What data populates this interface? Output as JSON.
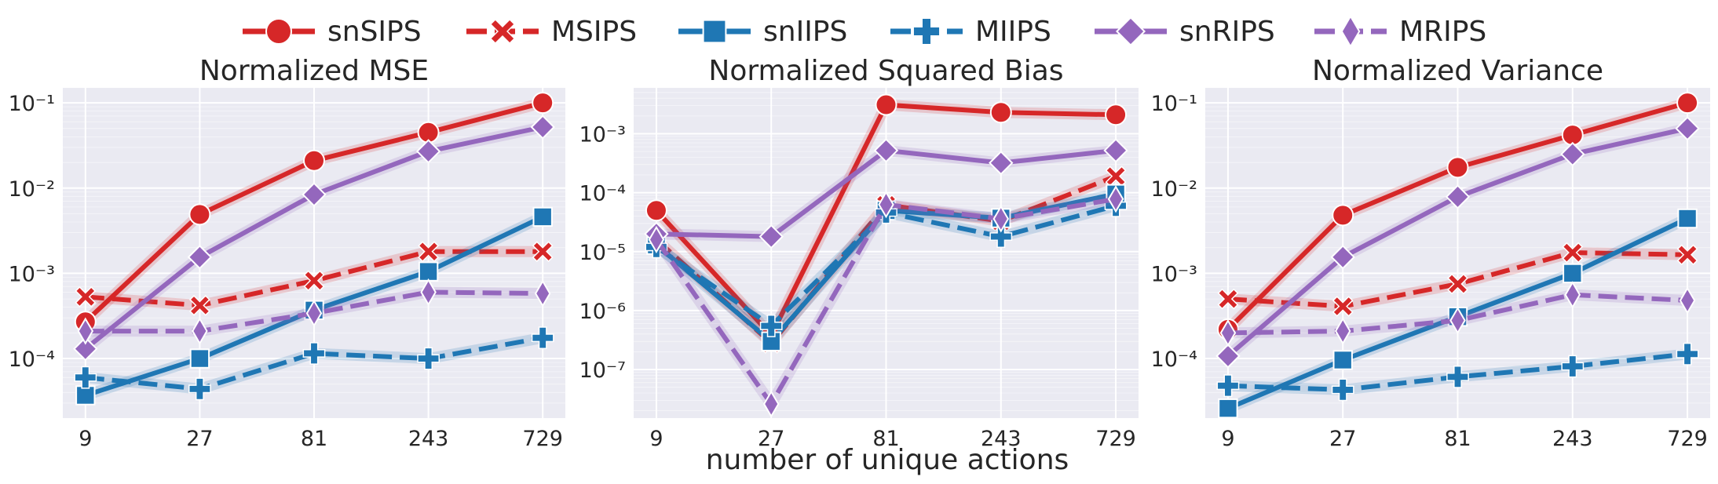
{
  "legend": {
    "entries": [
      {
        "name": "snSIPS",
        "color": "#d62728",
        "dash": "solid",
        "marker": "circle"
      },
      {
        "name": "MSIPS",
        "color": "#d62728",
        "dash": "dashed",
        "marker": "x"
      },
      {
        "name": "snIIPS",
        "color": "#1f77b4",
        "dash": "solid",
        "marker": "square"
      },
      {
        "name": "MIIPS",
        "color": "#1f77b4",
        "dash": "dashed",
        "marker": "plus"
      },
      {
        "name": "snRIPS",
        "color": "#9467bd",
        "dash": "solid",
        "marker": "diamond"
      },
      {
        "name": "MRIPS",
        "color": "#9467bd",
        "dash": "dashed",
        "marker": "thin-diamond"
      }
    ]
  },
  "x_label": "number of unique actions",
  "chart_data": [
    {
      "type": "line",
      "title": "Normalized MSE",
      "x_scale": "categorical",
      "y_scale": "log",
      "x": [
        "9",
        "27",
        "81",
        "243",
        "729"
      ],
      "yticks": [
        0.0001,
        0.001,
        0.01,
        0.1
      ],
      "ylim": [
        2e-05,
        0.15
      ],
      "grid": true,
      "series": [
        {
          "name": "snSIPS",
          "values": [
            0.00027,
            0.0049,
            0.021,
            0.045,
            0.1
          ]
        },
        {
          "name": "MSIPS",
          "values": [
            0.00053,
            0.00042,
            0.00082,
            0.0018,
            0.0018
          ]
        },
        {
          "name": "snIIPS",
          "values": [
            3.7e-05,
            0.0001,
            0.00037,
            0.00105,
            0.0046
          ]
        },
        {
          "name": "MIIPS",
          "values": [
            6e-05,
            4.4e-05,
            0.000115,
            0.0001,
            0.000175
          ]
        },
        {
          "name": "snRIPS",
          "values": [
            0.00013,
            0.00155,
            0.0084,
            0.027,
            0.052
          ]
        },
        {
          "name": "MRIPS",
          "values": [
            0.00021,
            0.00021,
            0.00034,
            0.0006,
            0.00058
          ]
        }
      ]
    },
    {
      "type": "line",
      "title": "Normalized Squared Bias",
      "x_scale": "categorical",
      "y_scale": "log",
      "x": [
        "9",
        "27",
        "81",
        "243",
        "729"
      ],
      "yticks": [
        1e-07,
        1e-06,
        1e-05,
        0.0001,
        0.001
      ],
      "ylim": [
        1.5e-08,
        0.006
      ],
      "grid": true,
      "series": [
        {
          "name": "snSIPS",
          "values": [
            5e-05,
            3.8e-07,
            0.0031,
            0.0023,
            0.0021
          ]
        },
        {
          "name": "MSIPS",
          "values": [
            1.6e-05,
            2.8e-07,
            6.2e-05,
            3.3e-05,
            0.00019
          ]
        },
        {
          "name": "snIIPS",
          "values": [
            1.3e-05,
            3e-07,
            5e-05,
            3.7e-05,
            9.5e-05
          ]
        },
        {
          "name": "MIIPS",
          "values": [
            1.2e-05,
            5.5e-07,
            4.6e-05,
            1.8e-05,
            6e-05
          ]
        },
        {
          "name": "snRIPS",
          "values": [
            2e-05,
            1.8e-05,
            0.00052,
            0.00032,
            0.00052
          ]
        },
        {
          "name": "MRIPS",
          "values": [
            1.6e-05,
            2.6e-08,
            6.3e-05,
            3.6e-05,
            7.8e-05
          ]
        }
      ]
    },
    {
      "type": "line",
      "title": "Normalized Variance",
      "x_scale": "categorical",
      "y_scale": "log",
      "x": [
        "9",
        "27",
        "81",
        "243",
        "729"
      ],
      "yticks": [
        0.0001,
        0.001,
        0.01,
        0.1
      ],
      "ylim": [
        2e-05,
        0.15
      ],
      "grid": true,
      "series": [
        {
          "name": "snSIPS",
          "values": [
            0.00022,
            0.0048,
            0.0175,
            0.042,
            0.1
          ]
        },
        {
          "name": "MSIPS",
          "values": [
            0.0005,
            0.00041,
            0.00075,
            0.00175,
            0.00165
          ]
        },
        {
          "name": "snIIPS",
          "values": [
            2.6e-05,
            9.6e-05,
            0.00031,
            0.001,
            0.0044
          ]
        },
        {
          "name": "MIIPS",
          "values": [
            4.8e-05,
            4.3e-05,
            6.1e-05,
            8.1e-05,
            0.000113
          ]
        },
        {
          "name": "snRIPS",
          "values": [
            0.000107,
            0.00155,
            0.0079,
            0.025,
            0.05
          ]
        },
        {
          "name": "MRIPS",
          "values": [
            0.0002,
            0.00021,
            0.00028,
            0.00056,
            0.00048
          ]
        }
      ]
    }
  ]
}
